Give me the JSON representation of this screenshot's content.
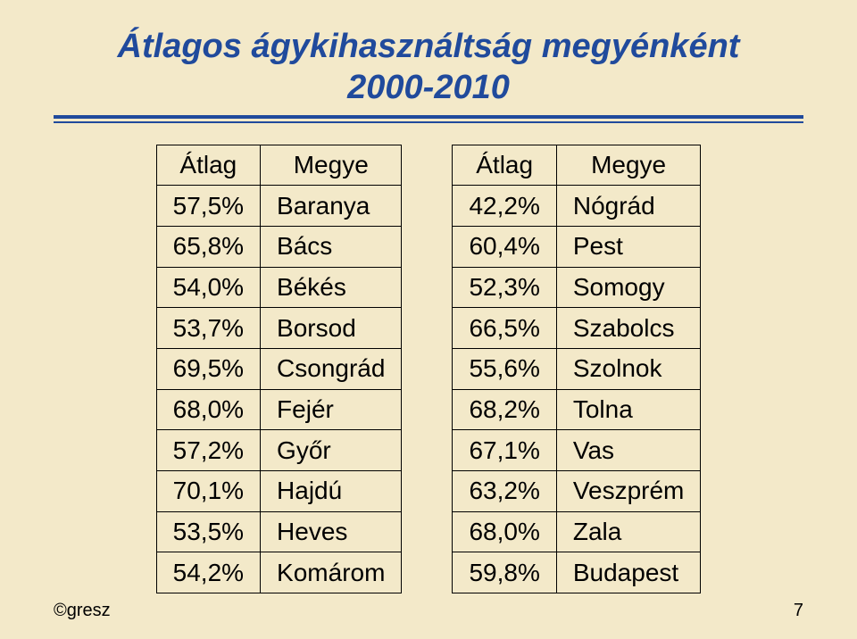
{
  "colors": {
    "slide_bg": "#f3e9c9",
    "title_color": "#204a9c",
    "rule_color": "#204a9c",
    "table_border": "#000000",
    "text_color": "#000000"
  },
  "title_line1": "Átlagos ágykihasználtság megyénként",
  "title_line2": "2000-2010",
  "tables": {
    "left": {
      "header": {
        "col1": "Átlag",
        "col2": "Megye"
      },
      "rows": [
        {
          "val": "57,5%",
          "name": "Baranya"
        },
        {
          "val": "65,8%",
          "name": "Bács"
        },
        {
          "val": "54,0%",
          "name": "Békés"
        },
        {
          "val": "53,7%",
          "name": "Borsod"
        },
        {
          "val": "69,5%",
          "name": "Csongrád"
        },
        {
          "val": "68,0%",
          "name": "Fejér"
        },
        {
          "val": "57,2%",
          "name": "Győr"
        },
        {
          "val": "70,1%",
          "name": "Hajdú"
        },
        {
          "val": "53,5%",
          "name": "Heves"
        },
        {
          "val": "54,2%",
          "name": "Komárom"
        }
      ]
    },
    "right": {
      "header": {
        "col1": "Átlag",
        "col2": "Megye"
      },
      "rows": [
        {
          "val": "42,2%",
          "name": "Nógrád"
        },
        {
          "val": "60,4%",
          "name": "Pest"
        },
        {
          "val": "52,3%",
          "name": "Somogy"
        },
        {
          "val": "66,5%",
          "name": "Szabolcs"
        },
        {
          "val": "55,6%",
          "name": "Szolnok"
        },
        {
          "val": "68,2%",
          "name": "Tolna"
        },
        {
          "val": "67,1%",
          "name": "Vas"
        },
        {
          "val": "63,2%",
          "name": "Veszprém"
        },
        {
          "val": "68,0%",
          "name": "Zala"
        },
        {
          "val": "59,8%",
          "name": "Budapest"
        }
      ]
    }
  },
  "footer": {
    "copyright": "©gresz",
    "page": "7"
  }
}
